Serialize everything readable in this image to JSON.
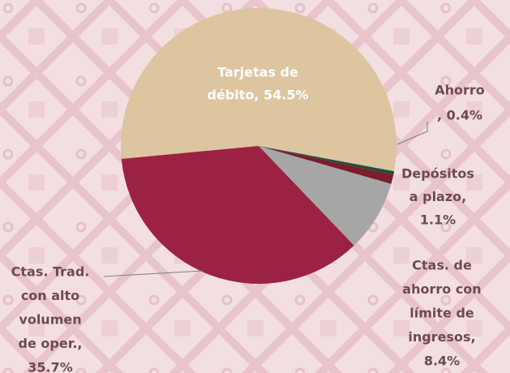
{
  "chart_data": {
    "type": "pie",
    "values": [
      54.5,
      0.4,
      1.1,
      8.4,
      35.7
    ],
    "value_labels": [
      [
        "Tarjetas de",
        "débito, 54.5%"
      ],
      [
        "Ahorro",
        ", 0.4%"
      ],
      [
        "Depósitos",
        "a  plazo,",
        "1.1%"
      ],
      [
        "Ctas. de",
        "ahorro con",
        "límite de",
        "ingresos,",
        "8.4%"
      ],
      [
        "Ctas. Trad.",
        "con alto",
        "volumen",
        "de  oper.,",
        "35.7%"
      ]
    ],
    "colors": [
      "#dcc59f",
      "#1f4e3d",
      "#7b1d2d",
      "#a6a6a6",
      "#9c2243"
    ]
  }
}
